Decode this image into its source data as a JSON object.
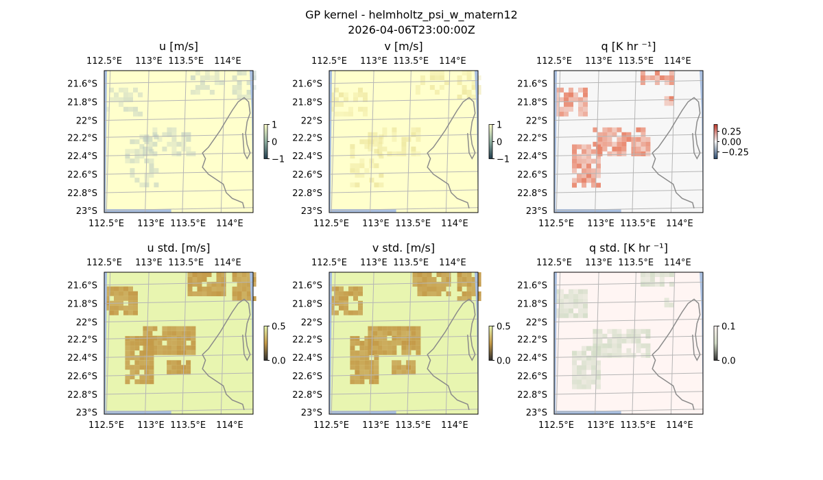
{
  "figure": {
    "title": "GP kernel - helmholtz_psi_w_matern12",
    "subtitle": "2026-04-06T23:00:00Z"
  },
  "colors": {
    "land": "#f7f7f7",
    "water": "#a9bfe0",
    "coast": "#8a8a8a",
    "grid": "#b5b5b5",
    "frame": "#000000"
  },
  "chart_data": [
    {
      "type": "heatmap",
      "title": "u [m/s]",
      "xticks": [
        "112.5°E",
        "113°E",
        "113.5°E",
        "114°E"
      ],
      "yticks": [
        "21.6°S",
        "21.8°S",
        "22°S",
        "22.2°S",
        "22.4°S",
        "22.6°S",
        "22.8°S",
        "23°S"
      ],
      "colorbar": {
        "ticks": [
          "1",
          "0",
          "−1"
        ],
        "min": -1,
        "max": 1
      },
      "palette": {
        "bg": "#ffffcc",
        "hi": "#b7c8c0"
      }
    },
    {
      "type": "heatmap",
      "title": "v [m/s]",
      "xticks": [
        "112.5°E",
        "113°E",
        "113.5°E",
        "114°E"
      ],
      "yticks": [
        "21.6°S",
        "21.8°S",
        "22°S",
        "22.2°S",
        "22.4°S",
        "22.6°S",
        "22.8°S",
        "23°S"
      ],
      "colorbar": {
        "ticks": [
          "1",
          "0",
          "−1"
        ],
        "min": -1,
        "max": 1
      },
      "palette": {
        "bg": "#ffffcc",
        "hi": "#e6dc8c"
      }
    },
    {
      "type": "heatmap",
      "title": "q [K hr ⁻¹]",
      "xticks": [
        "112.5°E",
        "113°E",
        "113.5°E",
        "114°E"
      ],
      "yticks": [
        "21.6°S",
        "21.8°S",
        "22°S",
        "22.2°S",
        "22.4°S",
        "22.6°S",
        "22.8°S",
        "23°S"
      ],
      "colorbar": {
        "ticks": [
          "0.25",
          "0.00",
          "−0.25"
        ],
        "min": -0.35,
        "max": 0.35
      },
      "palette": {
        "bg": "#f7f7f7",
        "hi": "#e8846a"
      }
    },
    {
      "type": "heatmap",
      "title": "u std. [m/s]",
      "xticks": [
        "112.5°E",
        "113°E",
        "113.5°E",
        "114°E"
      ],
      "yticks": [
        "21.6°S",
        "21.8°S",
        "22°S",
        "22.2°S",
        "22.4°S",
        "22.6°S",
        "22.8°S",
        "23°S"
      ],
      "colorbar": {
        "ticks": [
          "0.5",
          "0.0"
        ],
        "min": 0,
        "max": 0.5
      },
      "palette": {
        "bg": "#e8f5b0",
        "hi": "#c49a48"
      }
    },
    {
      "type": "heatmap",
      "title": "v std. [m/s]",
      "xticks": [
        "112.5°E",
        "113°E",
        "113.5°E",
        "114°E"
      ],
      "yticks": [
        "21.6°S",
        "21.8°S",
        "22°S",
        "22.2°S",
        "22.4°S",
        "22.6°S",
        "22.8°S",
        "23°S"
      ],
      "colorbar": {
        "ticks": [
          "0.5",
          "0.0"
        ],
        "min": 0,
        "max": 0.5
      },
      "palette": {
        "bg": "#e8f5b0",
        "hi": "#c49a48"
      }
    },
    {
      "type": "heatmap",
      "title": "q std. [K hr ⁻¹]",
      "xticks": [
        "112.5°E",
        "113°E",
        "113.5°E",
        "114°E"
      ],
      "yticks": [
        "21.6°S",
        "21.8°S",
        "22°S",
        "22.2°S",
        "22.4°S",
        "22.6°S",
        "22.8°S",
        "23°S"
      ],
      "colorbar": {
        "ticks": [
          "0.1",
          "0.0"
        ],
        "min": 0,
        "max": 0.1
      },
      "palette": {
        "bg": "#fff5f3",
        "hi": "#d2dcc6"
      }
    }
  ]
}
